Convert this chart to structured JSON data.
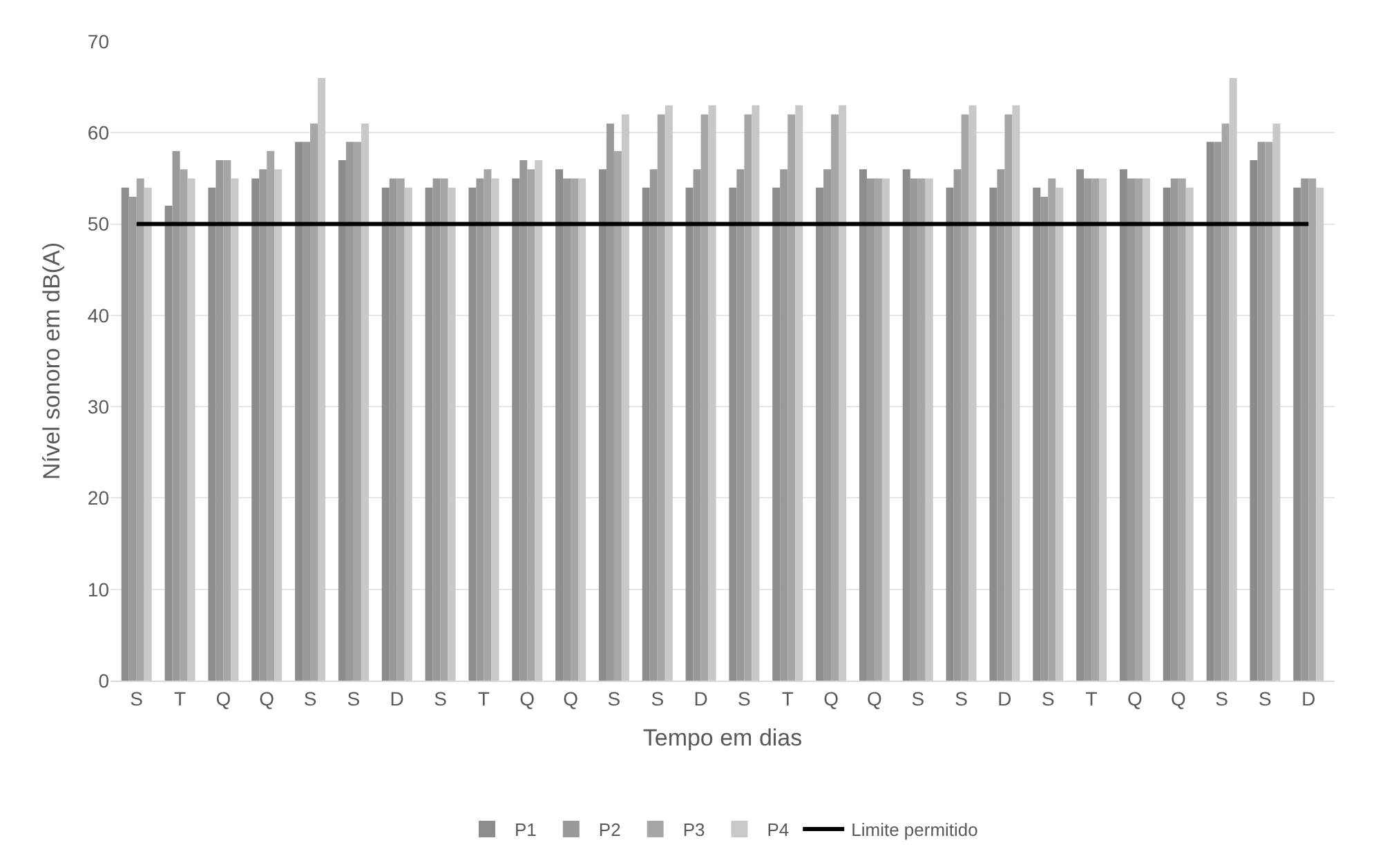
{
  "chart_data": {
    "type": "bar",
    "xlabel": "Tempo em dias",
    "ylabel": "Nível sonoro em dB(A)",
    "categories": [
      "S",
      "T",
      "Q",
      "Q",
      "S",
      "S",
      "D",
      "S",
      "T",
      "Q",
      "Q",
      "S",
      "S",
      "D",
      "S",
      "T",
      "Q",
      "Q",
      "S",
      "S",
      "D",
      "S",
      "T",
      "Q",
      "Q",
      "S",
      "S",
      "D"
    ],
    "series": [
      {
        "name": "P1",
        "color": "#8c8c8c",
        "values": [
          54,
          52,
          54,
          55,
          59,
          57,
          54,
          54,
          54,
          55,
          56,
          56,
          54,
          54,
          54,
          54,
          54,
          56,
          56,
          54,
          54,
          54,
          56,
          56,
          54,
          59,
          57,
          54
        ]
      },
      {
        "name": "P2",
        "color": "#999999",
        "values": [
          53,
          58,
          57,
          56,
          59,
          59,
          55,
          55,
          55,
          57,
          55,
          61,
          56,
          56,
          56,
          56,
          56,
          55,
          55,
          56,
          56,
          53,
          55,
          55,
          55,
          59,
          59,
          55
        ]
      },
      {
        "name": "P3",
        "color": "#a6a6a6",
        "values": [
          55,
          56,
          57,
          58,
          61,
          59,
          55,
          55,
          56,
          56,
          55,
          58,
          62,
          62,
          62,
          62,
          62,
          55,
          55,
          62,
          62,
          55,
          55,
          55,
          55,
          61,
          59,
          55
        ]
      },
      {
        "name": "P4",
        "color": "#c8c8c8",
        "values": [
          54,
          55,
          55,
          56,
          66,
          61,
          54,
          54,
          55,
          57,
          55,
          62,
          63,
          63,
          63,
          63,
          63,
          55,
          55,
          63,
          63,
          54,
          55,
          55,
          54,
          66,
          61,
          54
        ]
      },
      {
        "name": "Limite permitido",
        "type": "line",
        "color": "#000000",
        "values": [
          50,
          50,
          50,
          50,
          50,
          50,
          50,
          50,
          50,
          50,
          50,
          50,
          50,
          50,
          50,
          50,
          50,
          50,
          50,
          50,
          50,
          50,
          50,
          50,
          50,
          50,
          50,
          50
        ]
      }
    ],
    "ylim": [
      0,
      70
    ],
    "yticks": [
      0,
      10,
      20,
      30,
      40,
      50,
      60,
      70
    ],
    "grid": "y",
    "legend": "bottom",
    "marker": "none",
    "line_style": "solid"
  }
}
